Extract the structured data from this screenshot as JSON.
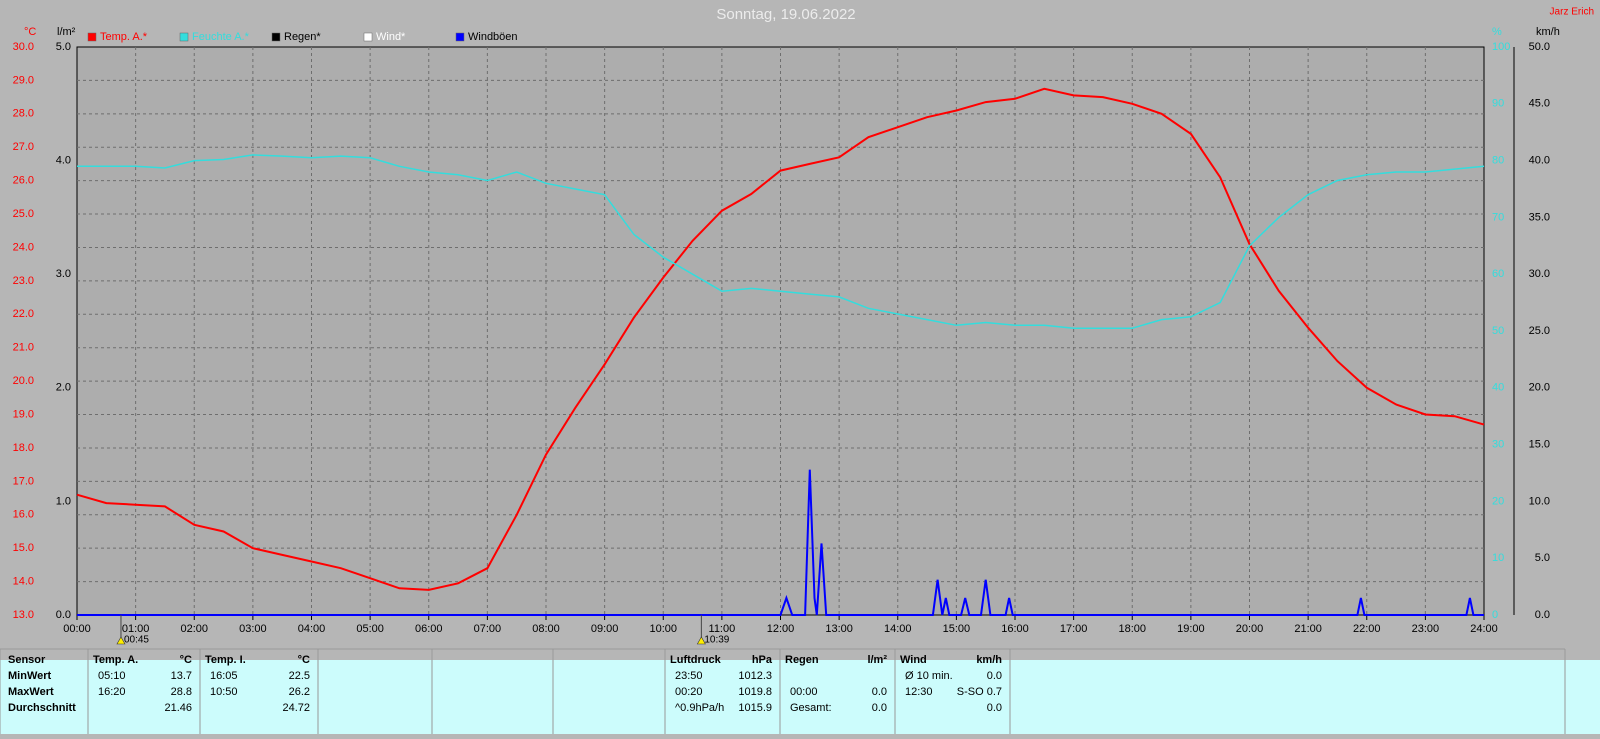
{
  "header": {
    "title": "Sonntag, 19.06.2022",
    "author": "Jarz Erich"
  },
  "chart_data": {
    "type": "line",
    "x": [
      0,
      0.5,
      1,
      1.5,
      2,
      2.5,
      3,
      3.5,
      4,
      4.5,
      5,
      5.5,
      6,
      6.5,
      7,
      7.5,
      8,
      8.5,
      9,
      9.5,
      10,
      10.5,
      11,
      11.5,
      12,
      12.5,
      13,
      13.5,
      14,
      14.5,
      15,
      15.5,
      16,
      16.5,
      17,
      17.5,
      18,
      18.5,
      19,
      19.5,
      20,
      20.5,
      21,
      21.5,
      22,
      22.5,
      23,
      23.5,
      24
    ],
    "xlim": [
      0,
      24
    ],
    "xticks": [
      {
        "value": 0,
        "label": "00:00"
      },
      {
        "value": 1,
        "label": "01:00"
      },
      {
        "value": 2,
        "label": "02:00"
      },
      {
        "value": 3,
        "label": "03:00"
      },
      {
        "value": 4,
        "label": "04:00"
      },
      {
        "value": 5,
        "label": "05:00"
      },
      {
        "value": 6,
        "label": "06:00"
      },
      {
        "value": 7,
        "label": "07:00"
      },
      {
        "value": 8,
        "label": "08:00"
      },
      {
        "value": 9,
        "label": "09:00"
      },
      {
        "value": 10,
        "label": "10:00"
      },
      {
        "value": 11,
        "label": "11:00"
      },
      {
        "value": 12,
        "label": "12:00"
      },
      {
        "value": 13,
        "label": "13:00"
      },
      {
        "value": 14,
        "label": "14:00"
      },
      {
        "value": 15,
        "label": "15:00"
      },
      {
        "value": 16,
        "label": "16:00"
      },
      {
        "value": 17,
        "label": "17:00"
      },
      {
        "value": 18,
        "label": "18:00"
      },
      {
        "value": 19,
        "label": "19:00"
      },
      {
        "value": 20,
        "label": "20:00"
      },
      {
        "value": 21,
        "label": "21:00"
      },
      {
        "value": 22,
        "label": "22:00"
      },
      {
        "value": 23,
        "label": "23:00"
      },
      {
        "value": 24,
        "label": "24:00"
      }
    ],
    "ylabel": "°C",
    "ylim": [
      13,
      30
    ],
    "yticks": [
      {
        "value": 13,
        "label": "13.0"
      },
      {
        "value": 14,
        "label": "14.0"
      },
      {
        "value": 15,
        "label": "15.0"
      },
      {
        "value": 16,
        "label": "16.0"
      },
      {
        "value": 17,
        "label": "17.0"
      },
      {
        "value": 18,
        "label": "18.0"
      },
      {
        "value": 19,
        "label": "19.0"
      },
      {
        "value": 20,
        "label": "20.0"
      },
      {
        "value": 21,
        "label": "21.0"
      },
      {
        "value": 22,
        "label": "22.0"
      },
      {
        "value": 23,
        "label": "23.0"
      },
      {
        "value": 24,
        "label": "24.0"
      },
      {
        "value": 25,
        "label": "25.0"
      },
      {
        "value": 26,
        "label": "26.0"
      },
      {
        "value": 27,
        "label": "27.0"
      },
      {
        "value": 28,
        "label": "28.0"
      },
      {
        "value": 29,
        "label": "29.0"
      },
      {
        "value": 30,
        "label": "30.0"
      }
    ],
    "y2label": "%",
    "y2lim": [
      0,
      100
    ],
    "y2ticks": [
      0,
      10,
      20,
      30,
      40,
      50,
      60,
      70,
      80,
      90,
      100
    ],
    "y3label": "l/m²",
    "y3lim": [
      0,
      5
    ],
    "y3ticks": [
      {
        "value": 0,
        "label": "0.0"
      },
      {
        "value": 1,
        "label": "1.0"
      },
      {
        "value": 2,
        "label": "2.0"
      },
      {
        "value": 3,
        "label": "3.0"
      },
      {
        "value": 4,
        "label": "4.0"
      },
      {
        "value": 5,
        "label": "5.0"
      }
    ],
    "y4label": "km/h",
    "y4lim": [
      0,
      50
    ],
    "y4ticks": [
      {
        "value": 0,
        "label": "0.0"
      },
      {
        "value": 5,
        "label": "5.0"
      },
      {
        "value": 10,
        "label": "10.0"
      },
      {
        "value": 15,
        "label": "15.0"
      },
      {
        "value": 20,
        "label": "20.0"
      },
      {
        "value": 25,
        "label": "25.0"
      },
      {
        "value": 30,
        "label": "30.0"
      },
      {
        "value": 35,
        "label": "35.0"
      },
      {
        "value": 40,
        "label": "40.0"
      },
      {
        "value": 45,
        "label": "45.0"
      },
      {
        "value": 50,
        "label": "50.0"
      }
    ],
    "grid": true,
    "series": [
      {
        "name": "Temp. A.*",
        "color": "#ff0000",
        "axis": "y",
        "values": [
          16.6,
          16.35,
          16.3,
          16.25,
          15.7,
          15.5,
          15.0,
          14.8,
          14.6,
          14.4,
          14.1,
          13.8,
          13.75,
          13.95,
          14.4,
          16.0,
          17.8,
          19.2,
          20.5,
          21.9,
          23.1,
          24.2,
          25.1,
          25.6,
          26.3,
          26.5,
          26.7,
          27.3,
          27.6,
          27.9,
          28.1,
          28.35,
          28.45,
          28.75,
          28.55,
          28.5,
          28.3,
          28.0,
          27.4,
          26.1,
          24.1,
          22.7,
          21.6,
          20.6,
          19.8,
          19.3,
          19.0,
          18.95,
          18.7
        ]
      },
      {
        "name": "Feuchte A.*",
        "color": "#33dddd",
        "axis": "y2",
        "values": [
          79,
          79,
          79,
          78.7,
          80,
          80.2,
          81,
          80.8,
          80.5,
          80.8,
          80.5,
          79,
          78,
          77.5,
          76.5,
          78,
          76,
          75,
          74,
          67,
          63,
          60,
          57,
          57.5,
          57,
          56.5,
          56,
          54,
          53,
          52,
          51,
          51.5,
          51,
          51,
          50.5,
          50.5,
          50.5,
          52,
          52.5,
          55,
          65,
          70,
          74,
          76.5,
          77.5,
          78,
          78,
          78.5,
          79
        ]
      },
      {
        "name": "Regen*",
        "color": "#000000",
        "axis": "y3"
      },
      {
        "name": "Wind*",
        "color": "#ffffff",
        "axis": "y4"
      },
      {
        "name": "Windböen",
        "color": "#0000ff",
        "axis": "y4",
        "x": [
          0,
          12.0,
          12.1,
          12.2,
          12.42,
          12.5,
          12.58,
          12.62,
          12.7,
          12.78,
          14.6,
          14.68,
          14.76,
          14.82,
          14.88,
          14.94,
          15.08,
          15.15,
          15.22,
          15.42,
          15.5,
          15.58,
          15.84,
          15.9,
          15.96,
          21.84,
          21.9,
          21.96,
          23.7,
          23.76,
          23.82,
          24
        ],
        "values": [
          0,
          0,
          1.5,
          0,
          0,
          12.8,
          1.5,
          0,
          6.3,
          0,
          0,
          3.1,
          0,
          1.5,
          0,
          0,
          0,
          1.5,
          0,
          0,
          3.1,
          0,
          0,
          1.5,
          0,
          0,
          1.5,
          0,
          0,
          1.5,
          0,
          0
        ]
      }
    ],
    "annotations": [
      {
        "x": 0.75,
        "text": "00:45"
      },
      {
        "x": 10.65,
        "text": "10:39"
      }
    ]
  },
  "stats": {
    "row_labels": [
      "Sensor",
      "MinWert",
      "MaxWert",
      "Durchschnitt"
    ],
    "blocks": [
      {
        "title": "Temp. A.",
        "unit": "°C",
        "rows": [
          [
            "05:10",
            "13.7"
          ],
          [
            "16:20",
            "28.8"
          ],
          [
            null,
            "21.46"
          ]
        ]
      },
      {
        "title": "Temp. I.",
        "unit": "°C",
        "rows": [
          [
            "16:05",
            "22.5"
          ],
          [
            "10:50",
            "26.2"
          ],
          [
            null,
            "24.72"
          ]
        ]
      },
      {
        "title": "Luftdruck",
        "unit": "hPa",
        "rows": [
          [
            "23:50",
            "1012.3"
          ],
          [
            "00:20",
            "1019.8"
          ],
          [
            "^0.9hPa/h",
            "1015.9"
          ]
        ]
      },
      {
        "title": "Regen",
        "unit": "l/m²",
        "rows": [
          [
            null,
            null
          ],
          [
            "00:00",
            "0.0"
          ],
          [
            "Gesamt:",
            "0.0"
          ]
        ]
      },
      {
        "title": "Wind",
        "unit": "km/h",
        "rows": [
          [
            "Ø 10 min.",
            "0.0"
          ],
          [
            "12:30",
            "S-SO 0.7"
          ],
          [
            null,
            "0.0"
          ]
        ]
      }
    ]
  }
}
